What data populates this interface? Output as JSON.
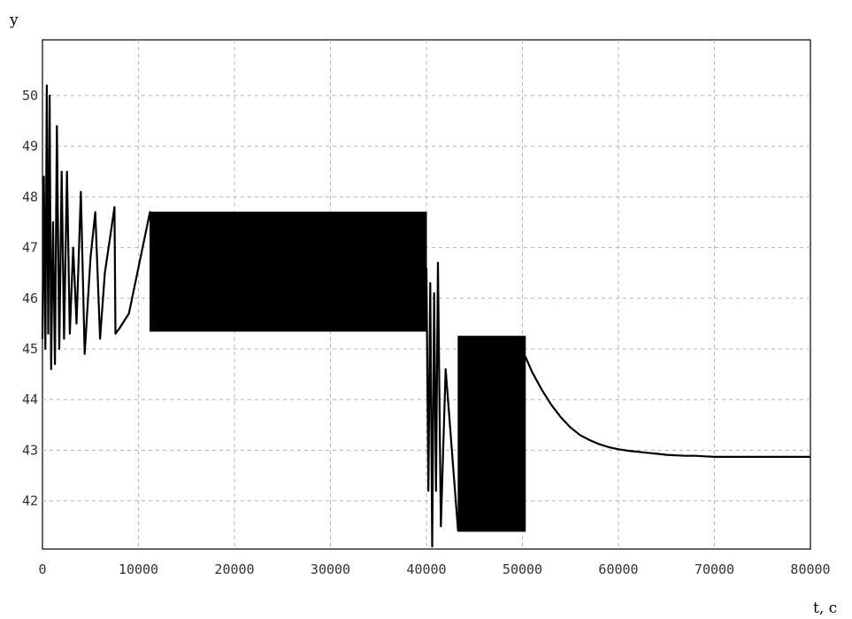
{
  "chart_data": {
    "type": "line",
    "title": "",
    "xlabel": "t, c",
    "ylabel": "y",
    "xlim": [
      0,
      80000
    ],
    "ylim": [
      41.05,
      51.1
    ],
    "grid": true,
    "x_ticks": [
      0,
      10000,
      20000,
      30000,
      40000,
      50000,
      60000,
      70000,
      80000
    ],
    "y_ticks": [
      42,
      43,
      44,
      45,
      46,
      47,
      48,
      49,
      50
    ],
    "series": [
      {
        "x": [
          0,
          150,
          300,
          450,
          600,
          750,
          900,
          1100,
          1300,
          1500,
          1750,
          2000,
          2250,
          2550,
          2850,
          3200,
          3550,
          4000,
          4400,
          5000,
          5500,
          6000,
          6500,
          7200,
          7500,
          7600,
          8000,
          9000,
          11200,
          11300
        ],
        "y": [
          45.2,
          48.4,
          45.0,
          50.2,
          45.3,
          50.0,
          44.6,
          47.5,
          44.7,
          49.4,
          45.0,
          48.5,
          45.2,
          48.5,
          45.3,
          47.0,
          45.5,
          48.1,
          44.9,
          46.8,
          47.7,
          45.2,
          46.5,
          47.4,
          47.8,
          45.3,
          45.4,
          45.7,
          47.7,
          47.7
        ]
      },
      {
        "x": [
          40000,
          40200,
          40400,
          40600,
          40800,
          41000,
          41200,
          41500,
          42000,
          43300
        ],
        "y": [
          46.6,
          42.2,
          46.3,
          41.1,
          46.1,
          42.2,
          46.7,
          41.5,
          44.6,
          41.4
        ]
      },
      {
        "x": [
          50300,
          51000,
          52000,
          53000,
          54000,
          55000,
          56000,
          57000,
          58000,
          59000,
          60000,
          61000,
          62000,
          63000,
          64000,
          65000,
          66000,
          67000,
          68000,
          69000,
          70000,
          75000,
          80000
        ],
        "y": [
          44.85,
          44.55,
          44.2,
          43.9,
          43.65,
          43.45,
          43.3,
          43.2,
          43.12,
          43.06,
          43.02,
          42.99,
          42.97,
          42.95,
          42.93,
          42.91,
          42.9,
          42.89,
          42.89,
          42.88,
          42.87,
          42.87,
          42.87
        ]
      }
    ],
    "oscillation_bands": [
      {
        "x": [
          11200,
          40000
        ],
        "y": [
          45.35,
          47.7
        ]
      },
      {
        "x": [
          43300,
          50300
        ],
        "y": [
          41.4,
          45.25
        ]
      }
    ]
  }
}
